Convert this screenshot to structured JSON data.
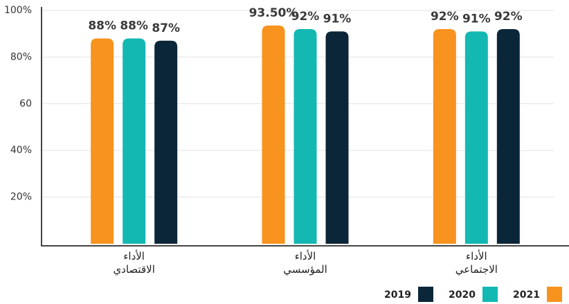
{
  "chart_data": {
    "type": "bar",
    "categories": [
      "الأداء\nالاقتصادي",
      "الأداء\nالمؤسسي",
      "الأداء\nالاجتماعي"
    ],
    "series": [
      {
        "name": "2021",
        "color": "#f7931e",
        "values": [
          88,
          93.5,
          92
        ],
        "value_labels": [
          "88%",
          "93.50%",
          "92%"
        ]
      },
      {
        "name": "2020",
        "color": "#14b8b3",
        "values": [
          88,
          92,
          91
        ],
        "value_labels": [
          "88%",
          "92%",
          "91%"
        ]
      },
      {
        "name": "2019",
        "color": "#0b2638",
        "values": [
          87,
          91,
          92
        ],
        "value_labels": [
          "87%",
          "91%",
          "92%"
        ]
      }
    ],
    "ylim": [
      0,
      100
    ],
    "yticks": [
      {
        "value": 20,
        "label": "20%"
      },
      {
        "value": 40,
        "label": "40%"
      },
      60,
      {
        "value": 80,
        "label": "80%"
      },
      {
        "value": 100,
        "label": "100%"
      }
    ],
    "grid": true,
    "legend": "bottom-right"
  }
}
